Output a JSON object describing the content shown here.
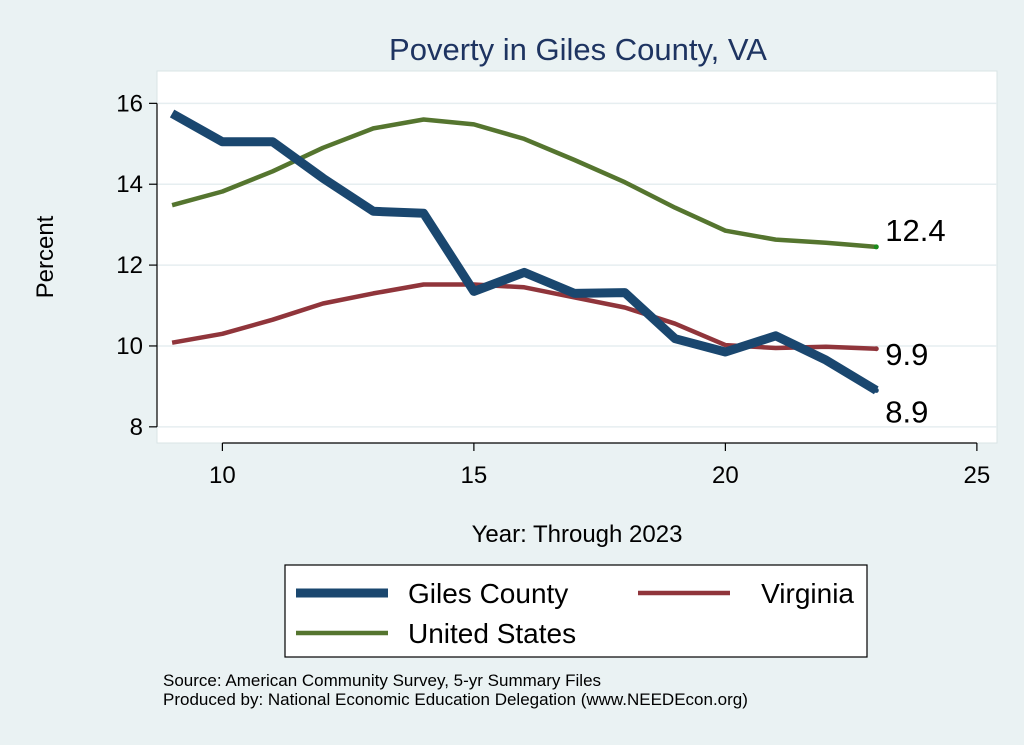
{
  "chart_data": {
    "type": "line",
    "title": "Poverty in Giles County, VA",
    "xlabel": "Year: Through 2023",
    "ylabel": "Percent",
    "xlim": [
      8.7,
      25.4
    ],
    "ylim": [
      7.6,
      16.8
    ],
    "x_ticks": [
      10,
      15,
      20,
      25
    ],
    "y_ticks": [
      8,
      10,
      12,
      14,
      16
    ],
    "grid": true,
    "legend_position": "bottom",
    "series": [
      {
        "name": "Giles County",
        "color": "#1a476f",
        "x": [
          9,
          10,
          11,
          12,
          13,
          14,
          15,
          16,
          17,
          18,
          19,
          20,
          21,
          22,
          23
        ],
        "values": [
          15.75,
          15.05,
          15.05,
          14.15,
          13.33,
          13.28,
          11.35,
          11.82,
          11.3,
          11.32,
          10.18,
          9.85,
          10.25,
          9.65,
          8.9
        ],
        "end_label": "8.9"
      },
      {
        "name": "Virginia",
        "color": "#90353b",
        "x": [
          9,
          10,
          11,
          12,
          13,
          14,
          15,
          16,
          17,
          18,
          19,
          20,
          21,
          22,
          23
        ],
        "values": [
          10.08,
          10.3,
          10.65,
          11.05,
          11.3,
          11.52,
          11.52,
          11.45,
          11.2,
          10.95,
          10.55,
          10.02,
          9.95,
          9.98,
          9.93
        ],
        "end_label": "9.9"
      },
      {
        "name": "United States",
        "color": "#55752f",
        "x": [
          9,
          10,
          11,
          12,
          13,
          14,
          15,
          16,
          17,
          18,
          19,
          20,
          21,
          22,
          23
        ],
        "values": [
          13.48,
          13.82,
          14.32,
          14.9,
          15.38,
          15.6,
          15.48,
          15.12,
          14.6,
          14.05,
          13.42,
          12.85,
          12.63,
          12.55,
          12.45
        ],
        "end_label": "12.4"
      }
    ]
  },
  "source": {
    "line1": "Source: American Community Survey, 5-yr Summary Files",
    "line2": "Produced by: National Economic Education Delegation (www.NEEDEcon.org)"
  }
}
